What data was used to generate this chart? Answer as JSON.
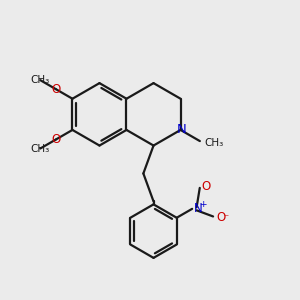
{
  "bg_color": "#ebebeb",
  "bond_color": "#1a1a1a",
  "n_color": "#0000cc",
  "o_color": "#cc0000",
  "line_width": 1.6,
  "font_size": 8.5,
  "xlim": [
    0,
    10
  ],
  "ylim": [
    0,
    10
  ]
}
